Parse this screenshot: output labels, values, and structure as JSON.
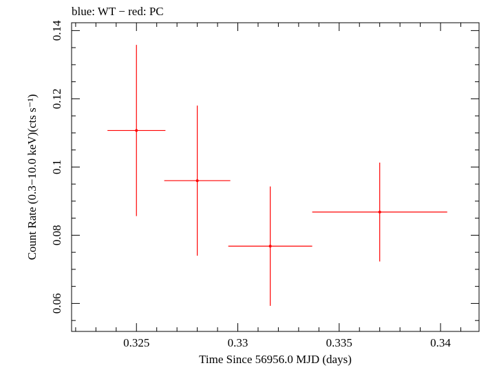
{
  "chart_data": {
    "type": "scatter",
    "title": "blue: WT − red: PC",
    "xlabel": "Time Since 56956.0 MJD (days)",
    "ylabel": "Count Rate (0.3−10.0 keV)(cts s⁻¹)",
    "xlim": [
      0.3218,
      0.3419
    ],
    "ylim": [
      0.0518,
      0.1423
    ],
    "x_ticks": [
      0.325,
      0.33,
      0.335,
      0.34
    ],
    "x_tick_labels": [
      "0.325",
      "0.33",
      "0.335",
      "0.34"
    ],
    "y_ticks": [
      0.06,
      0.08,
      0.1,
      0.12,
      0.14
    ],
    "y_tick_labels": [
      "0.06",
      "0.08",
      "0.1",
      "0.12",
      "0.14"
    ],
    "grid": false,
    "series": [
      {
        "name": "PC",
        "color": "#ff0000",
        "points": [
          {
            "x": 0.325,
            "y": 0.1107,
            "x_err_low": 0.00143,
            "x_err_high": 0.00143,
            "y_err_low": 0.0251,
            "y_err_high": 0.0251
          },
          {
            "x": 0.328,
            "y": 0.096,
            "x_err_low": 0.00163,
            "x_err_high": 0.00163,
            "y_err_low": 0.022,
            "y_err_high": 0.022
          },
          {
            "x": 0.3316,
            "y": 0.0768,
            "x_err_low": 0.00207,
            "x_err_high": 0.00207,
            "y_err_low": 0.0175,
            "y_err_high": 0.0175
          },
          {
            "x": 0.337,
            "y": 0.0868,
            "x_err_low": 0.00333,
            "x_err_high": 0.00333,
            "y_err_low": 0.0145,
            "y_err_high": 0.0145
          }
        ]
      }
    ]
  }
}
